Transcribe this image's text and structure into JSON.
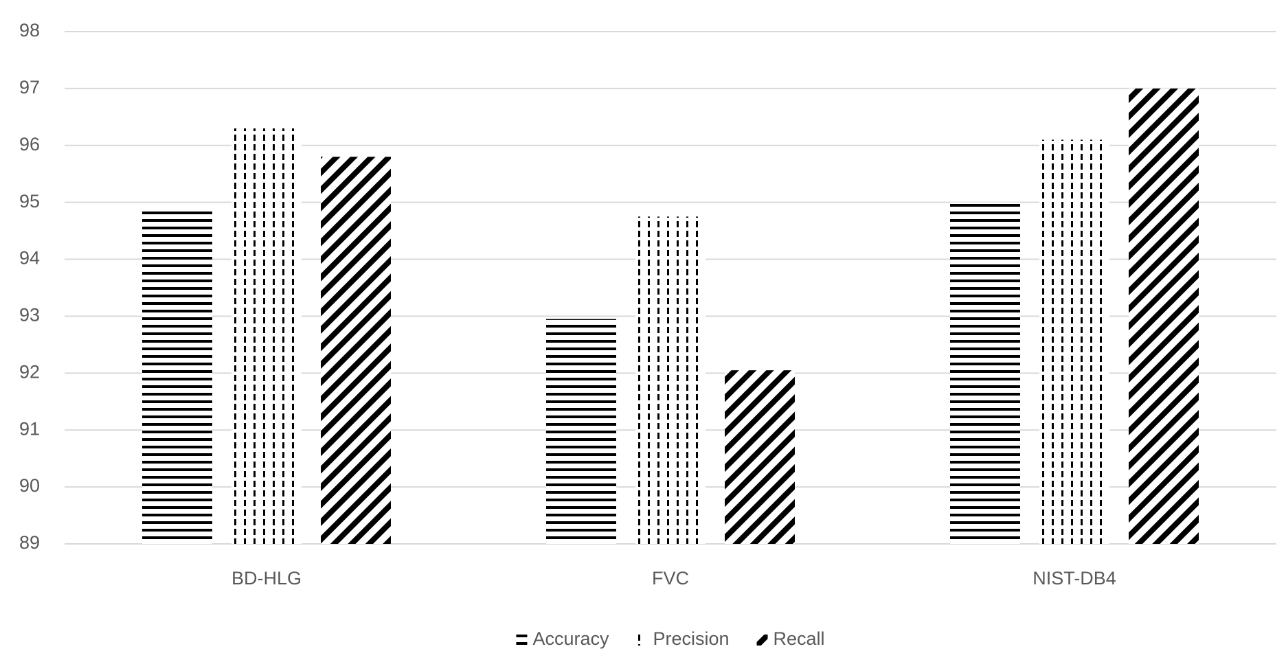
{
  "chart_data": {
    "type": "bar",
    "categories": [
      "BD-HLG",
      "FVC",
      "NIST-DB4"
    ],
    "series": [
      {
        "name": "Accuracy",
        "color": "#000000",
        "pattern": "horizontal",
        "values": [
          94.85,
          92.95,
          95.0
        ]
      },
      {
        "name": "Precision",
        "color": "#000000",
        "pattern": "vertical-dash",
        "values": [
          96.3,
          94.75,
          96.1
        ]
      },
      {
        "name": "Recall",
        "color": "#000000",
        "pattern": "diagonal",
        "values": [
          95.8,
          92.05,
          97.0
        ]
      }
    ],
    "ylim": [
      89,
      98
    ],
    "yticks": [
      89,
      90,
      91,
      92,
      93,
      94,
      95,
      96,
      97,
      98
    ],
    "grid": true,
    "legend": "bottom"
  }
}
